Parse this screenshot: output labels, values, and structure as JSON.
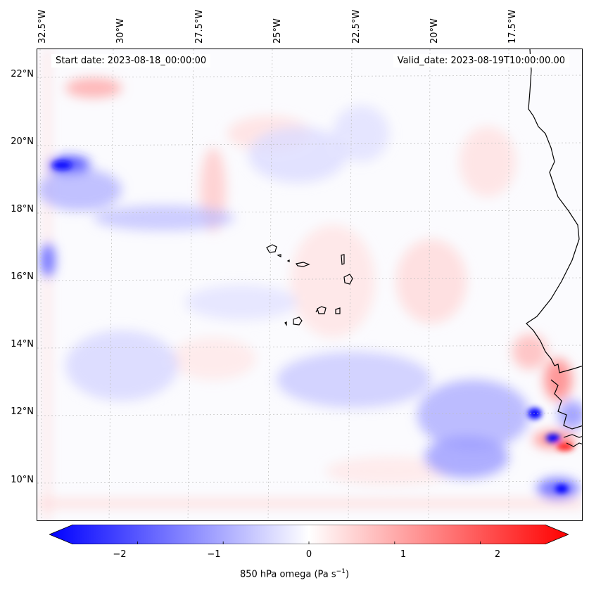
{
  "map": {
    "start_date": "Start date: 2023-08-18_00:00:00",
    "valid_date": "Valid_date: 2023-08-19T10:00:00.00",
    "lon_labels": [
      "32.5°W",
      "30°W",
      "27.5°W",
      "25°W",
      "22.5°W",
      "20°W",
      "17.5°W"
    ],
    "lat_labels": [
      "22°N",
      "20°N",
      "18°N",
      "16°N",
      "14°N",
      "12°N",
      "10°N"
    ],
    "field_colors": {
      "negative": "#0000ff",
      "neutral": "#ffffff",
      "positive": "#ff0000",
      "coast": "#000000"
    }
  },
  "colorbar": {
    "ticks": [
      "−2",
      "−1",
      "0",
      "1",
      "2"
    ],
    "tick_values": [
      -2,
      -1,
      0,
      1,
      2
    ],
    "range": [
      -2.75,
      2.75
    ],
    "label_text": "850 hPa omega (Pa s",
    "label_sup": "−1",
    "label_end": ")"
  }
}
